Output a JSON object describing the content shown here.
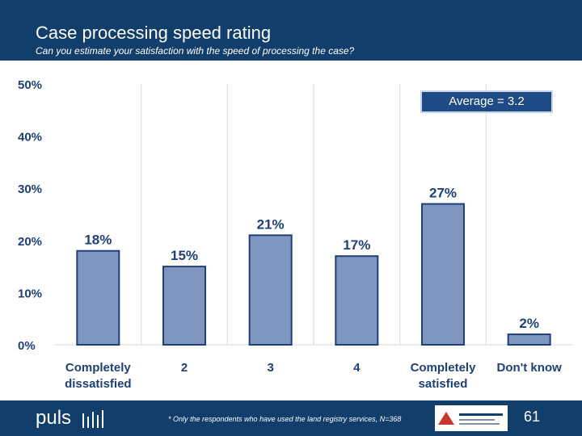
{
  "header": {
    "title": "Case processing speed rating",
    "subtitle": "Can you estimate your satisfaction with the speed of processing the case?"
  },
  "chart_data": {
    "type": "bar",
    "categories": [
      [
        "Completely",
        "dissatisfied"
      ],
      [
        "2"
      ],
      [
        "3"
      ],
      [
        "4"
      ],
      [
        "Completely",
        "satisfied"
      ],
      [
        "Don't know"
      ]
    ],
    "values": [
      18,
      15,
      21,
      17,
      27,
      2
    ],
    "value_labels": [
      "18%",
      "15%",
      "21%",
      "17%",
      "27%",
      "2%"
    ],
    "y_ticks": [
      "0%",
      "10%",
      "20%",
      "30%",
      "40%",
      "50%"
    ],
    "ylim": [
      0,
      50
    ],
    "grid": true,
    "bar_color": "#7f97c0",
    "bar_stroke": "#1e3f79",
    "label_color": "#1e3f79"
  },
  "average_label": "Average = 3.2",
  "footer": {
    "logo": "puls",
    "footnote": "* Only the respondents who have used the land registry services, N=368",
    "page_number": "61"
  }
}
